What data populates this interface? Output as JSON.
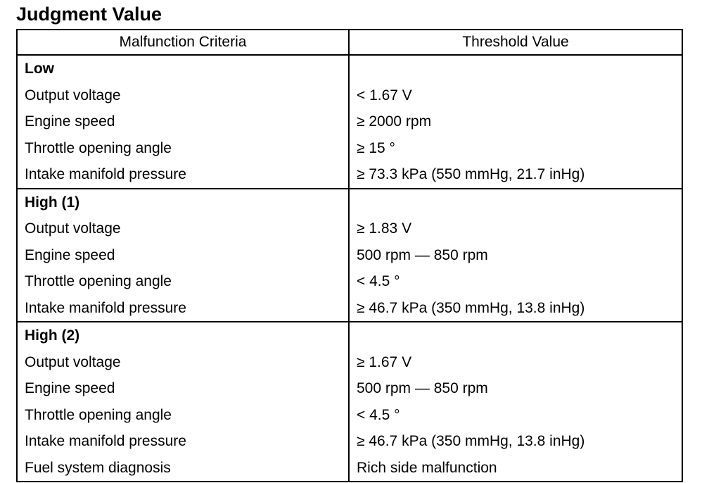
{
  "title": "Judgment Value",
  "headers": {
    "criteria": "Malfunction Criteria",
    "threshold": "Threshold Value"
  },
  "groups": [
    {
      "name": "Low",
      "rows": [
        {
          "criterion": "Output voltage",
          "value": "< 1.67 V"
        },
        {
          "criterion": "Engine speed",
          "value": "≥ 2000 rpm"
        },
        {
          "criterion": "Throttle opening angle",
          "value": "≥ 15 °"
        },
        {
          "criterion": "Intake manifold pressure",
          "value": "≥ 73.3 kPa (550 mmHg, 21.7 inHg)"
        }
      ]
    },
    {
      "name": "High (1)",
      "rows": [
        {
          "criterion": "Output voltage",
          "value": "≥ 1.83 V"
        },
        {
          "criterion": "Engine speed",
          "value": "500 rpm — 850 rpm"
        },
        {
          "criterion": "Throttle opening angle",
          "value": "< 4.5 °"
        },
        {
          "criterion": "Intake manifold pressure",
          "value": "≥ 46.7 kPa (350 mmHg, 13.8 inHg)"
        }
      ]
    },
    {
      "name": "High (2)",
      "rows": [
        {
          "criterion": "Output voltage",
          "value": "≥ 1.67 V"
        },
        {
          "criterion": "Engine speed",
          "value": "500 rpm — 850 rpm"
        },
        {
          "criterion": "Throttle opening angle",
          "value": "< 4.5 °"
        },
        {
          "criterion": "Intake manifold pressure",
          "value": "≥ 46.7 kPa (350 mmHg, 13.8 inHg)"
        },
        {
          "criterion": "Fuel system diagnosis",
          "value": "Rich side malfunction"
        }
      ]
    }
  ]
}
